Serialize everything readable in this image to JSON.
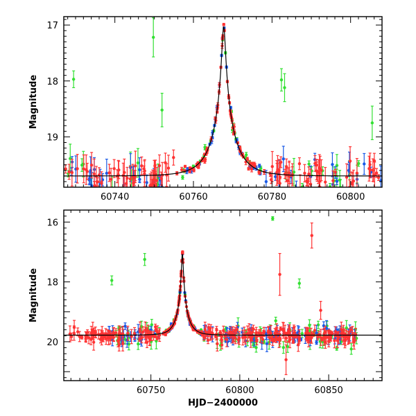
{
  "chart_data": [
    {
      "type": "scatter",
      "title": "",
      "xlabel": "",
      "ylabel": "Magnitude",
      "xlim": [
        60727,
        60808
      ],
      "ylim": [
        19.9,
        16.85
      ],
      "y_inverted": true,
      "grid": false,
      "xticks": [
        60740,
        60760,
        60780,
        60800
      ],
      "yticks": [
        17,
        18,
        19
      ],
      "xminor_step": 2,
      "yminor_step": 0.1,
      "model_curve": {
        "color": "#000000",
        "peak_x": 60767.7,
        "peak_mag": 17.02,
        "baseline_mag": 19.7,
        "tE": 6.0,
        "u0": 0.066
      },
      "series": [
        {
          "color": "#ff3333",
          "x_range": [
            60727,
            60808
          ],
          "count": 150
        },
        {
          "color": "#1a5ae6",
          "x_range": [
            60728,
            60808
          ],
          "count": 60
        },
        {
          "color": "#33e033",
          "x_range": [
            60728,
            60808
          ],
          "count": 45
        }
      ],
      "outliers": [
        {
          "x": 60729.5,
          "y": 17.97,
          "err": 0.15,
          "color": "#33e033"
        },
        {
          "x": 60749.8,
          "y": 17.22,
          "err": 0.35,
          "color": "#33e033"
        },
        {
          "x": 60752.0,
          "y": 18.52,
          "err": 0.3,
          "color": "#33e033"
        },
        {
          "x": 60782.4,
          "y": 17.98,
          "err": 0.2,
          "color": "#33e033"
        },
        {
          "x": 60783.2,
          "y": 18.12,
          "err": 0.25,
          "color": "#33e033"
        },
        {
          "x": 60805.5,
          "y": 18.75,
          "err": 0.3,
          "color": "#33e033"
        },
        {
          "x": 60744.0,
          "y": 19.55,
          "err": 0.25,
          "color": "#1a5ae6"
        },
        {
          "x": 60778.5,
          "y": 19.8,
          "err": 0.2,
          "color": "#1a5ae6"
        }
      ]
    },
    {
      "type": "scatter",
      "title": "",
      "xlabel": "HJD−2400000",
      "ylabel": "Magnitude",
      "xlim": [
        60701,
        60880
      ],
      "ylim": [
        21.3,
        15.6
      ],
      "y_inverted": true,
      "grid": false,
      "xticks": [
        60750,
        60800,
        60850
      ],
      "yticks": [
        16,
        18,
        20
      ],
      "xminor_step": 5,
      "yminor_step": 0.2,
      "model_curve": {
        "color": "#000000",
        "peak_x": 60767.7,
        "peak_mag": 17.02,
        "baseline_mag": 19.78,
        "tE": 6.0,
        "u0": 0.066
      },
      "series": [
        {
          "color": "#ff3333",
          "x_range": [
            60704,
            60866
          ],
          "count": 290
        },
        {
          "color": "#1a5ae6",
          "x_range": [
            60726,
            60866
          ],
          "count": 120
        },
        {
          "color": "#33e033",
          "x_range": [
            60726,
            60866
          ],
          "count": 90
        }
      ],
      "outliers": [
        {
          "x": 60818.5,
          "y": 15.88,
          "err": 0.06,
          "color": "#33e033"
        },
        {
          "x": 60840.5,
          "y": 16.45,
          "err": 0.42,
          "color": "#ff3333"
        },
        {
          "x": 60746.5,
          "y": 17.25,
          "err": 0.2,
          "color": "#33e033"
        },
        {
          "x": 60728.0,
          "y": 17.95,
          "err": 0.15,
          "color": "#33e033"
        },
        {
          "x": 60822.5,
          "y": 17.75,
          "err": 0.7,
          "color": "#ff3333"
        },
        {
          "x": 60833.5,
          "y": 18.05,
          "err": 0.15,
          "color": "#33e033"
        },
        {
          "x": 60845.5,
          "y": 18.95,
          "err": 0.3,
          "color": "#ff3333"
        },
        {
          "x": 60826.0,
          "y": 20.6,
          "err": 0.5,
          "color": "#ff3333"
        }
      ]
    }
  ]
}
